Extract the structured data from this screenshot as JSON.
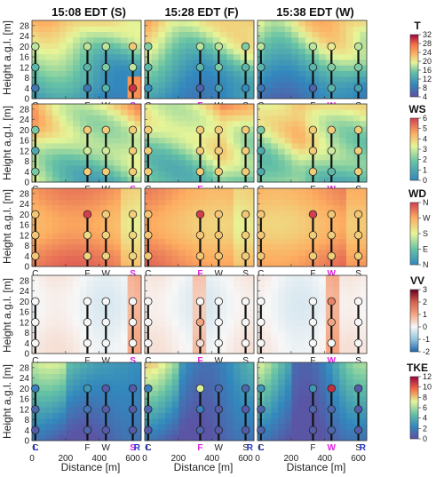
{
  "chart_data": {
    "type": "heatmap",
    "columns": [
      "15:08 EDT (S)",
      "15:28 EDT (F)",
      "15:38 EDT (W)"
    ],
    "xlabel": "Distance [m]",
    "ylabel": "Height a.g.l. [m]",
    "xlim": [
      0,
      650
    ],
    "ylim": [
      0,
      30
    ],
    "xticks": [
      "0",
      "200",
      "400",
      "600"
    ],
    "yticks": [
      "0",
      "4",
      "8",
      "12",
      "16",
      "20",
      "24",
      "28"
    ],
    "tower_labels": [
      "C",
      "F",
      "W",
      "S"
    ],
    "tower_x": [
      20,
      330,
      440,
      600
    ],
    "sensor_heights": [
      4,
      12,
      20
    ],
    "highlight": [
      "S",
      "F",
      "W"
    ],
    "endpoint_labels": [
      "L",
      "R"
    ],
    "variables": [
      {
        "name": "T",
        "ticks": [
          "4",
          "8",
          "12",
          "16",
          "20",
          "24",
          "28",
          "32"
        ],
        "range": [
          4,
          32
        ]
      },
      {
        "name": "WS",
        "ticks": [
          "0",
          "1",
          "2",
          "3",
          "4",
          "5",
          "6"
        ],
        "range": [
          0,
          6
        ]
      },
      {
        "name": "WD",
        "ticks": [
          "N",
          "E",
          "S",
          "W",
          "N"
        ],
        "range": [
          0,
          360
        ]
      },
      {
        "name": "VV",
        "ticks": [
          "-2",
          "-1",
          "0",
          "1",
          "2",
          "3"
        ],
        "range": [
          -2,
          3
        ]
      },
      {
        "name": "TKE",
        "ticks": [
          "0",
          "2",
          "4",
          "6",
          "8",
          "10",
          "12"
        ],
        "range": [
          0,
          12
        ]
      }
    ],
    "tower_values": {
      "T": [
        [
          [
            8,
            14,
            18
          ],
          [
            8,
            14,
            18
          ],
          [
            14,
            16,
            18
          ],
          [
            30,
            18,
            22
          ]
        ],
        [
          [
            10,
            14,
            16
          ],
          [
            6,
            14,
            18
          ],
          [
            12,
            16,
            18
          ],
          [
            10,
            14,
            16
          ]
        ],
        [
          [
            8,
            14,
            18
          ],
          [
            6,
            14,
            18
          ],
          [
            14,
            16,
            20
          ],
          [
            12,
            16,
            18
          ]
        ]
      ],
      "WS": [
        [
          [
            2,
            1,
            2
          ],
          [
            4,
            3,
            4
          ],
          [
            4,
            3,
            4
          ],
          [
            4,
            4,
            4
          ]
        ],
        [
          [
            4,
            4,
            4
          ],
          [
            4,
            4,
            4
          ],
          [
            4,
            4,
            4
          ],
          [
            4,
            4,
            4
          ]
        ],
        [
          [
            1,
            1,
            2
          ],
          [
            4,
            4,
            4
          ],
          [
            1.5,
            3,
            4
          ],
          [
            4,
            4,
            4
          ]
        ]
      ],
      "WD": [
        [
          [
            240,
            240,
            240
          ],
          [
            220,
            210,
            360
          ],
          [
            220,
            220,
            230
          ],
          [
            220,
            220,
            230
          ]
        ],
        [
          [
            240,
            240,
            240
          ],
          [
            240,
            240,
            360
          ],
          [
            240,
            240,
            240
          ],
          [
            230,
            230,
            240
          ]
        ],
        [
          [
            240,
            240,
            240
          ],
          [
            230,
            230,
            360
          ],
          [
            230,
            230,
            240
          ],
          [
            230,
            230,
            240
          ]
        ]
      ],
      "VV": [
        [
          [
            0,
            0,
            0
          ],
          [
            0,
            0,
            0
          ],
          [
            0,
            0,
            0
          ],
          [
            0,
            0,
            0
          ]
        ],
        [
          [
            0,
            0,
            0
          ],
          [
            0.3,
            1,
            0
          ],
          [
            0,
            0,
            0
          ],
          [
            0,
            0,
            0
          ]
        ],
        [
          [
            0,
            0,
            0
          ],
          [
            0,
            0,
            0
          ],
          [
            0,
            1,
            1.5
          ],
          [
            0,
            0,
            0
          ]
        ]
      ],
      "TKE": [
        [
          [
            0.5,
            1,
            2
          ],
          [
            1,
            1.5,
            3
          ],
          [
            0.5,
            0.5,
            0.5
          ],
          [
            0.5,
            0.5,
            0.5
          ]
        ],
        [
          [
            0.5,
            1,
            2
          ],
          [
            1,
            2,
            7
          ],
          [
            0.5,
            0.5,
            1
          ],
          [
            0.5,
            0.5,
            1
          ]
        ],
        [
          [
            1,
            1,
            3
          ],
          [
            0.5,
            1,
            3
          ],
          [
            1,
            1,
            11
          ],
          [
            0.5,
            0.5,
            0.5
          ]
        ]
      ]
    }
  }
}
